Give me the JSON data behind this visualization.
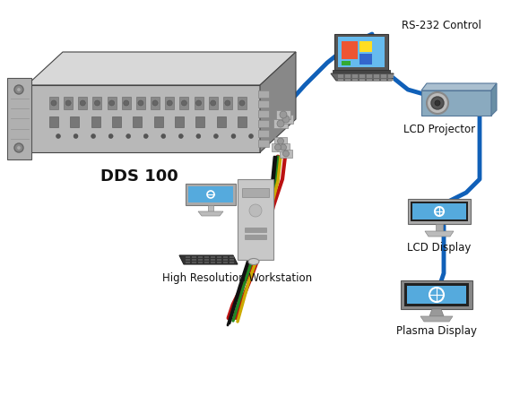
{
  "bg_color": "#ffffff",
  "blue": "#1060B8",
  "red": "#BB1111",
  "green": "#228822",
  "yellow": "#CCAA00",
  "black": "#111111",
  "gray_dark": "#666666",
  "gray_mid": "#999999",
  "gray_light": "#CCCCCC",
  "gray_lighter": "#E0E0E0",
  "screen_blue": "#55AADD",
  "screen_blue2": "#66BBEE",
  "projector_blue": "#8AAABF",
  "rack_front": "#B8B8B8",
  "rack_top": "#D8D8D8",
  "rack_side": "#888888",
  "dds_label": "DDS 100",
  "label_rs232": "RS-232 Control",
  "label_projector": "LCD Projector",
  "label_lcd": "LCD Display",
  "label_plasma": "Plasma Display",
  "label_workstation": "High Resolution Workstation",
  "fig_w": 5.7,
  "fig_h": 4.61,
  "dpi": 100
}
